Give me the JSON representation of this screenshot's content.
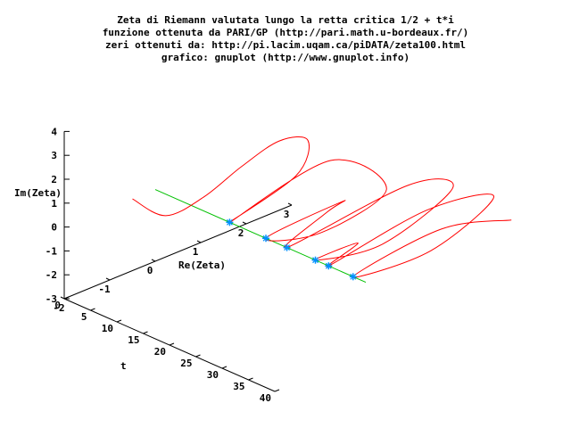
{
  "title_lines": [
    "Zeta di Riemann valutata lungo la retta critica 1/2 + t*i",
    "funzione ottenuta da PARI/GP (http://pari.math.u-bordeaux.fr/)",
    "zeri ottenuti da: http://pi.lacim.uqam.ca/piDATA/zeta100.html",
    "grafico: gnuplot (http://www.gnuplot.info)"
  ],
  "chart_data": {
    "type": "line",
    "xlabel": "Re(Zeta)",
    "ylabel": "Im(Zeta)",
    "tlabel": "t",
    "re_ticks": [
      "-2",
      "-1",
      "0",
      "1",
      "2",
      "3"
    ],
    "im_ticks": [
      "4",
      "3",
      "2",
      "1",
      "0",
      "-1",
      "-2",
      "-3"
    ],
    "t_ticks": [
      "0",
      "5",
      "10",
      "15",
      "20",
      "25",
      "30",
      "35",
      "40"
    ],
    "t_range": [
      0,
      40
    ],
    "re_range": [
      -2,
      3
    ],
    "im_range": [
      -3,
      4
    ],
    "zeros_t": [
      14.135,
      21.022,
      25.011,
      30.425,
      32.935,
      37.586
    ],
    "zero_marker_color": "#0090ff",
    "curve_color": "#ff0000",
    "axis_line_color": "#00c000",
    "series": [
      {
        "name": "zeta",
        "points": [
          {
            "t": 0.0,
            "re": -0.5,
            "im": 0.0
          },
          {
            "t": 2.0,
            "re": 0.0,
            "im": -0.9
          },
          {
            "t": 4.0,
            "re": 0.6,
            "im": -0.4
          },
          {
            "t": 6.0,
            "re": 1.2,
            "im": 0.6
          },
          {
            "t": 8.0,
            "re": 1.8,
            "im": 1.4
          },
          {
            "t": 10.0,
            "re": 2.2,
            "im": 1.3
          },
          {
            "t": 12.0,
            "re": 1.7,
            "im": 0.4
          },
          {
            "t": 14.135,
            "re": 0.0,
            "im": 0.0
          },
          {
            "t": 16.0,
            "re": 2.0,
            "im": 1.2
          },
          {
            "t": 18.0,
            "re": 3.0,
            "im": -0.6
          },
          {
            "t": 19.5,
            "re": 1.4,
            "im": -1.0
          },
          {
            "t": 21.022,
            "re": 0.0,
            "im": 0.0
          },
          {
            "t": 22.5,
            "re": 1.5,
            "im": 0.5
          },
          {
            "t": 24.0,
            "re": 1.0,
            "im": 0.6
          },
          {
            "t": 25.011,
            "re": 0.0,
            "im": 0.0
          },
          {
            "t": 26.5,
            "re": 2.5,
            "im": 0.8
          },
          {
            "t": 28.0,
            "re": 3.3,
            "im": 0.2
          },
          {
            "t": 29.3,
            "re": 1.6,
            "im": -0.7
          },
          {
            "t": 30.425,
            "re": 0.0,
            "im": 0.0
          },
          {
            "t": 31.6,
            "re": 0.8,
            "im": 0.2
          },
          {
            "t": 32.935,
            "re": 0.0,
            "im": 0.0
          },
          {
            "t": 34.3,
            "re": 2.0,
            "im": 0.9
          },
          {
            "t": 35.8,
            "re": 3.3,
            "im": 0.6
          },
          {
            "t": 36.8,
            "re": 1.8,
            "im": -0.4
          },
          {
            "t": 37.586,
            "re": 0.0,
            "im": 0.0
          },
          {
            "t": 38.8,
            "re": 1.8,
            "im": 0.7
          },
          {
            "t": 40.0,
            "re": 3.2,
            "im": 0.1
          }
        ]
      }
    ]
  }
}
